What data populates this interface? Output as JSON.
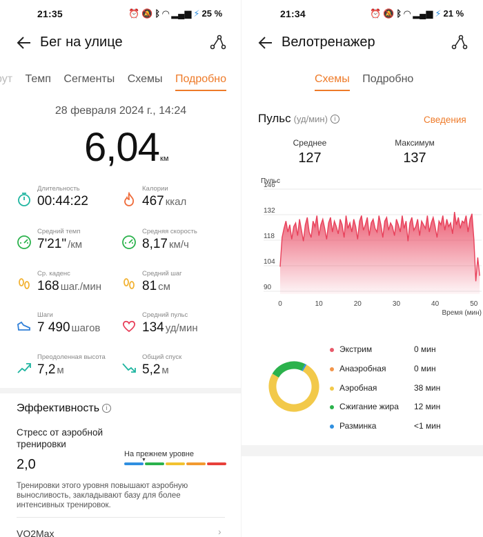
{
  "left": {
    "status_time": "21:35",
    "battery": "25 %",
    "title": "Бег на улице",
    "tabs": [
      "рут",
      "Темп",
      "Сегменты",
      "Схемы",
      "Подробно"
    ],
    "date": "28 февраля 2024 г., 14:24",
    "distance": "6,04",
    "distance_unit": "км",
    "stats": [
      {
        "icon": "stopwatch-icon",
        "label": "Длительность",
        "value": "00:44:22",
        "unit": "",
        "color": "#1fb5a0"
      },
      {
        "icon": "flame-icon",
        "label": "Калории",
        "value": "467",
        "unit": "ккал",
        "color": "#ef6b3a"
      },
      {
        "icon": "speedometer-icon",
        "label": "Средний темп",
        "value": "7'21\"",
        "unit": "/км",
        "color": "#2bb24c"
      },
      {
        "icon": "speedometer-icon",
        "label": "Средняя скорость",
        "value": "8,17",
        "unit": "км/ч",
        "color": "#2bb24c"
      },
      {
        "icon": "footprints-icon",
        "label": "Ср. каденс",
        "value": "168",
        "unit": "шаг./мин",
        "color": "#f2b233"
      },
      {
        "icon": "footprints-icon",
        "label": "Средний шаг",
        "value": "81",
        "unit": "см",
        "color": "#f2b233"
      },
      {
        "icon": "shoe-icon",
        "label": "Шаги",
        "value": "7 490",
        "unit": "шагов",
        "color": "#2f7fd8"
      },
      {
        "icon": "heart-icon",
        "label": "Средний пульс",
        "value": "134",
        "unit": "уд/мин",
        "color": "#e8405a"
      },
      {
        "icon": "ascent-icon",
        "label": "Преодоленная высота",
        "value": "7,2",
        "unit": "м",
        "color": "#1fb5a0"
      },
      {
        "icon": "descent-icon",
        "label": "Общий спуск",
        "value": "5,2",
        "unit": "м",
        "color": "#1fb5a0"
      }
    ],
    "efficiency_title": "Эффективность",
    "stress_label": "Стресс от аэробной тренировки",
    "stress_value": "2,0",
    "level_label": "На прежнем уровне",
    "level_colors": [
      "#2f8fe0",
      "#2bb24c",
      "#f2c230",
      "#f29a30",
      "#e8403a"
    ],
    "description": "Тренировки этого уровня повышают аэробную выносливость, закладывают базу для более интенсивных тренировок.",
    "vo2max": "VO2Max"
  },
  "right": {
    "status_time": "21:34",
    "battery": "21 %",
    "title": "Велотренажер",
    "tabs": [
      "Схемы",
      "Подробно"
    ],
    "pulse_title": "Пульс",
    "pulse_unit": "(уд/мин)",
    "details_link": "Сведения",
    "avg_label": "Среднее",
    "avg_value": "127",
    "max_label": "Максимум",
    "max_value": "137",
    "zones": [
      {
        "name": "Экстрим",
        "value": "0 мин",
        "color": "#e85a6a"
      },
      {
        "name": "Анаэробная",
        "value": "0 мин",
        "color": "#f2954a"
      },
      {
        "name": "Аэробная",
        "value": "38 мин",
        "color": "#f2c94a"
      },
      {
        "name": "Сжигание жира",
        "value": "12 мин",
        "color": "#2bb24c"
      },
      {
        "name": "Разминка",
        "value": "<1 мин",
        "color": "#2f8fe0"
      }
    ]
  },
  "chart_data": {
    "type": "area",
    "ylabel": "Пульс",
    "xlabel": "Время (мин)",
    "yticks": [
      146,
      132,
      118,
      104,
      90
    ],
    "xticks": [
      0,
      10,
      20,
      30,
      40,
      50
    ],
    "ylim": [
      90,
      146
    ],
    "xlim": [
      0,
      52
    ],
    "grid": true,
    "color": "#e8405a",
    "x": [
      0,
      0.5,
      1,
      1.5,
      2,
      2.5,
      3,
      3.5,
      4,
      4.5,
      5,
      5.5,
      6,
      6.5,
      7,
      7.5,
      8,
      8.5,
      9,
      9.5,
      10,
      10.5,
      11,
      11.5,
      12,
      12.5,
      13,
      13.5,
      14,
      14.5,
      15,
      15.5,
      16,
      16.5,
      17,
      17.5,
      18,
      18.5,
      19,
      19.5,
      20,
      20.5,
      21,
      21.5,
      22,
      22.5,
      23,
      23.5,
      24,
      24.5,
      25,
      25.5,
      26,
      26.5,
      27,
      27.5,
      28,
      28.5,
      29,
      29.5,
      30,
      30.5,
      31,
      31.5,
      32,
      32.5,
      33,
      33.5,
      34,
      34.5,
      35,
      35.5,
      36,
      36.5,
      37,
      37.5,
      38,
      38.5,
      39,
      39.5,
      40,
      40.5,
      41,
      41.5,
      42,
      42.5,
      43,
      43.5,
      44,
      44.5,
      45,
      45.5,
      46,
      46.5,
      47,
      47.5,
      48,
      48.5,
      49,
      49.5,
      50,
      50.5,
      51,
      51.5
    ],
    "values": [
      105,
      121,
      126,
      130,
      124,
      128,
      120,
      127,
      129,
      122,
      131,
      125,
      119,
      128,
      132,
      124,
      121,
      130,
      127,
      133,
      122,
      128,
      131,
      126,
      120,
      129,
      132,
      124,
      130,
      127,
      123,
      131,
      128,
      121,
      133,
      126,
      129,
      124,
      131,
      127,
      120,
      130,
      133,
      125,
      128,
      132,
      122,
      129,
      131,
      126,
      124,
      133,
      128,
      121,
      130,
      132,
      125,
      129,
      127,
      122,
      131,
      128,
      124,
      133,
      126,
      130,
      119,
      129,
      132,
      125,
      127,
      131,
      122,
      130,
      128,
      126,
      133,
      124,
      129,
      132,
      127,
      121,
      130,
      128,
      133,
      125,
      131,
      127,
      129,
      123,
      135,
      128,
      132,
      126,
      130,
      129,
      133,
      124,
      131,
      134,
      120,
      97,
      110,
      100
    ]
  }
}
